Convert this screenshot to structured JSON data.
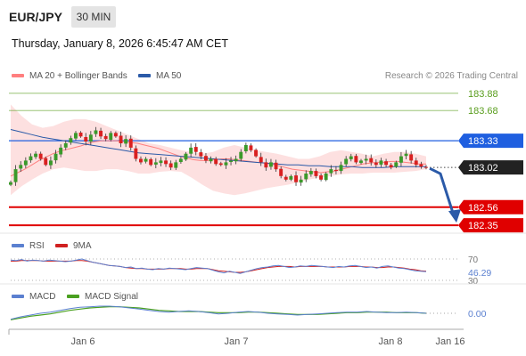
{
  "header": {
    "symbol": "EUR/JPY",
    "timeframe": "30 MIN",
    "datetime": "Thursday, January 8, 2026 6:45:47 AM CET",
    "copyright": "Research © 2026 Trading Central"
  },
  "colors": {
    "ma20": "#ff7f7f",
    "ma50": "#2b5aa8",
    "band_fill": "#fde0e0",
    "resistance_green": "#5a9e1e",
    "support_red": "#e00000",
    "pivot_blue": "#1f5fe0",
    "candle_up": "#3a9a2a",
    "candle_down": "#d92020",
    "rsi": "#5b80d0",
    "rsi_ma": "#d02020",
    "macd": "#5b80d0",
    "macd_signal": "#4aa020",
    "arrow": "#2b5aa8"
  },
  "chart_data": [
    {
      "type": "candlestick",
      "panel": "price",
      "legend": [
        "MA 20 + Bollinger Bands",
        "MA 50"
      ],
      "ylim": [
        182.3,
        183.95
      ],
      "x_ticks": [
        "Jan 6",
        "Jan 7",
        "Jan 8",
        "Jan 16"
      ],
      "levels": [
        {
          "value": 183.88,
          "label": "183.88",
          "kind": "resistance"
        },
        {
          "value": 183.68,
          "label": "183.68",
          "kind": "resistance"
        },
        {
          "value": 183.33,
          "label": "183.33",
          "kind": "pivot"
        },
        {
          "value": 183.02,
          "label": "183.02",
          "kind": "last"
        },
        {
          "value": 182.56,
          "label": "182.56",
          "kind": "support"
        },
        {
          "value": 182.35,
          "label": "182.35",
          "kind": "support"
        }
      ],
      "closes": [
        182.85,
        183.0,
        183.05,
        183.1,
        183.15,
        183.18,
        183.12,
        183.05,
        183.1,
        183.18,
        183.25,
        183.3,
        183.36,
        183.42,
        183.38,
        183.32,
        183.4,
        183.45,
        183.38,
        183.35,
        183.42,
        183.38,
        183.3,
        183.35,
        183.25,
        183.12,
        183.08,
        183.12,
        183.05,
        183.08,
        183.1,
        183.06,
        183.02,
        183.08,
        183.12,
        183.18,
        183.25,
        183.2,
        183.15,
        183.1,
        183.12,
        183.06,
        183.05,
        183.08,
        183.1,
        183.12,
        183.2,
        183.28,
        183.22,
        183.15,
        183.08,
        183.02,
        183.08,
        183.0,
        182.92,
        182.88,
        182.92,
        182.85,
        182.88,
        182.95,
        182.98,
        182.92,
        182.88,
        182.95,
        183.0,
        182.98,
        183.05,
        183.12,
        183.15,
        183.08,
        183.1,
        183.12,
        183.08,
        183.05,
        183.1,
        183.05,
        183.02,
        183.08,
        183.15,
        183.18,
        183.1,
        183.05,
        183.03,
        183.02
      ],
      "ma20": [
        182.92,
        182.96,
        183.0,
        183.05,
        183.1,
        183.14,
        183.18,
        183.21,
        183.23,
        183.25,
        183.27,
        183.3,
        183.32,
        183.33,
        183.33,
        183.33,
        183.32,
        183.31,
        183.3,
        183.28,
        183.26,
        183.24,
        183.21,
        183.18,
        183.15,
        183.13,
        183.11,
        183.1,
        183.1,
        183.11,
        183.12,
        183.12,
        183.11,
        183.1,
        183.09,
        183.08,
        183.07,
        183.06,
        183.04,
        183.02,
        183.0,
        182.99,
        182.98,
        182.97,
        182.96,
        182.97,
        182.98,
        183.0,
        183.02,
        183.04,
        183.06,
        183.07,
        183.08,
        183.08,
        183.09,
        183.09,
        183.08,
        183.07,
        183.06,
        183.06
      ],
      "ma50": [
        183.46,
        183.43,
        183.4,
        183.37,
        183.35,
        183.33,
        183.31,
        183.29,
        183.27,
        183.25,
        183.23,
        183.21,
        183.19,
        183.18,
        183.17,
        183.16,
        183.15,
        183.14,
        183.13,
        183.12,
        183.11,
        183.1,
        183.09,
        183.08,
        183.07,
        183.06,
        183.05,
        183.05,
        183.04,
        183.04,
        183.03,
        183.03,
        183.03,
        183.02,
        183.02,
        183.02,
        183.03,
        183.03,
        183.03,
        183.03
      ],
      "bb_upper": [
        183.75,
        183.62,
        183.52,
        183.48,
        183.5,
        183.55,
        183.58,
        183.58,
        183.55,
        183.5,
        183.45,
        183.4,
        183.35,
        183.3,
        183.28,
        183.25,
        183.22,
        183.2,
        183.18,
        183.2,
        183.25,
        183.28,
        183.25,
        183.22,
        183.2,
        183.18,
        183.15,
        183.12,
        183.12,
        183.15,
        183.2,
        183.22,
        183.2,
        183.18,
        183.15,
        183.18,
        183.2,
        183.2,
        183.18,
        183.15
      ],
      "bb_lower": [
        182.7,
        182.8,
        182.88,
        182.95,
        183.0,
        183.02,
        183.0,
        182.98,
        182.98,
        183.0,
        183.0,
        182.98,
        182.95,
        182.95,
        182.97,
        182.98,
        182.97,
        182.9,
        182.82,
        182.75,
        182.72,
        182.7,
        182.72,
        182.75,
        182.78,
        182.8,
        182.82,
        182.85,
        182.88,
        182.9,
        182.92,
        182.94,
        182.95,
        182.95,
        182.96,
        182.96,
        182.96,
        182.97,
        182.98,
        183.0
      ]
    },
    {
      "type": "line",
      "panel": "rsi",
      "legend": [
        "RSI",
        "9MA"
      ],
      "levels": [
        {
          "value": 70,
          "label": "70"
        },
        {
          "value": 30,
          "label": "30"
        }
      ],
      "current_label": "46.29",
      "ylim": [
        25,
        75
      ],
      "rsi": [
        68,
        67,
        69,
        66,
        68,
        67,
        66,
        68,
        67,
        66,
        65,
        66,
        68,
        70,
        67,
        64,
        62,
        60,
        58,
        57,
        56,
        54,
        55,
        52,
        53,
        51,
        50,
        52,
        51,
        53,
        52,
        51,
        50,
        52,
        54,
        53,
        52,
        49,
        46,
        44,
        47,
        45,
        43,
        46,
        49,
        52,
        54,
        55,
        57,
        58,
        56,
        54,
        55,
        57,
        56,
        58,
        57,
        56,
        55,
        54,
        56,
        55,
        57,
        58,
        56,
        54,
        55,
        53,
        56,
        57,
        55,
        53,
        52,
        50,
        48,
        47,
        46.29
      ],
      "rsi_ma": [
        66,
        66,
        67,
        67,
        67,
        67,
        66,
        66,
        66,
        66,
        66,
        66,
        67,
        67,
        66,
        64,
        62,
        60,
        58,
        57,
        56,
        54,
        53,
        52,
        52,
        51,
        51,
        51,
        51,
        52,
        52,
        52,
        51,
        51,
        52,
        52,
        52,
        50,
        48,
        47,
        46,
        45,
        45,
        46,
        48,
        50,
        52,
        54,
        55,
        56,
        56,
        56,
        55,
        56,
        56,
        56,
        56,
        56,
        55,
        55,
        55,
        55,
        56,
        56,
        56,
        55,
        55,
        54,
        54,
        55,
        55,
        54,
        53,
        51,
        50,
        48,
        47
      ]
    },
    {
      "type": "line",
      "panel": "macd",
      "legend": [
        "MACD",
        "MACD Signal"
      ],
      "current_label": "0.00",
      "ylim": [
        -0.18,
        0.18
      ],
      "macd": [
        -0.1,
        -0.06,
        -0.03,
        0.0,
        0.02,
        0.05,
        0.08,
        0.1,
        0.11,
        0.12,
        0.12,
        0.11,
        0.09,
        0.07,
        0.05,
        0.03,
        0.02,
        0.03,
        0.04,
        0.03,
        0.01,
        -0.01,
        0.0,
        0.02,
        0.03,
        0.02,
        0.0,
        -0.01,
        -0.02,
        -0.03,
        -0.02,
        -0.01,
        0.0,
        0.01,
        0.02,
        0.02,
        0.03,
        0.02,
        0.01,
        0.01,
        0.02,
        0.01,
        0.0
      ],
      "signal": [
        -0.11,
        -0.08,
        -0.05,
        -0.03,
        -0.01,
        0.02,
        0.05,
        0.07,
        0.09,
        0.1,
        0.11,
        0.11,
        0.1,
        0.09,
        0.07,
        0.05,
        0.04,
        0.03,
        0.03,
        0.03,
        0.02,
        0.01,
        0.01,
        0.01,
        0.02,
        0.02,
        0.01,
        0.0,
        -0.01,
        -0.02,
        -0.02,
        -0.02,
        -0.01,
        0.0,
        0.01,
        0.01,
        0.02,
        0.02,
        0.02,
        0.01,
        0.01,
        0.01,
        0.0
      ]
    }
  ]
}
